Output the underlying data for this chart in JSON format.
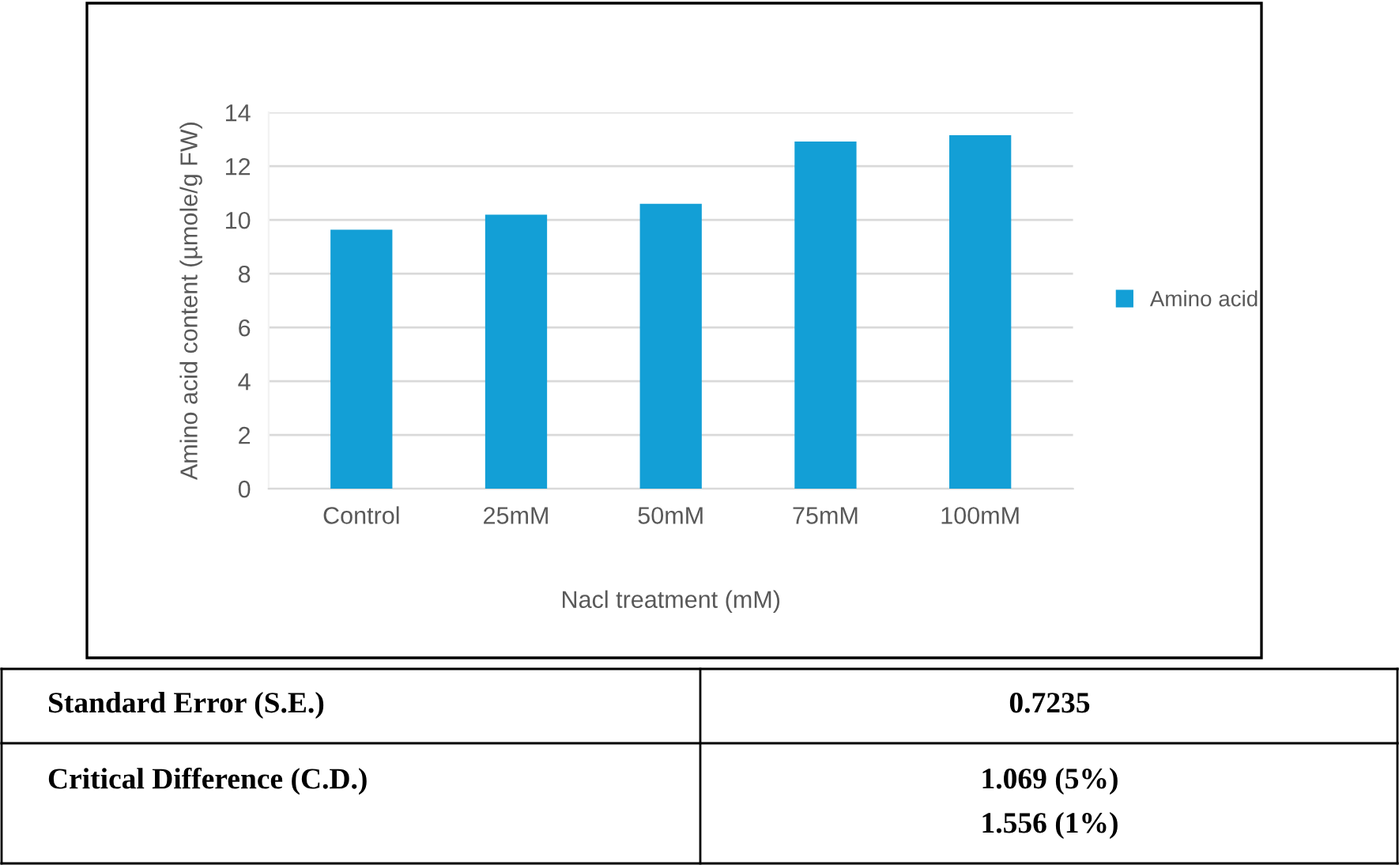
{
  "chart_data": {
    "type": "bar",
    "xlabel": "Nacl treatment (mM)",
    "ylabel": "Amino acid content (µmole/g FW)",
    "categories": [
      "Control",
      "25mM",
      "50mM",
      "75mM",
      "100mM"
    ],
    "series": [
      {
        "name": "Amino acid",
        "color": "#139fd6",
        "values": [
          9.64,
          10.2,
          10.6,
          12.92,
          13.15
        ]
      }
    ],
    "ylim": [
      0,
      14
    ],
    "yticks": [
      0,
      2,
      4,
      6,
      8,
      10,
      12,
      14
    ],
    "grid": "y",
    "legend": "right",
    "annotations": [
      "Standard Error (S.E.)",
      "0.7235",
      "Critical Difference (C.D.)",
      "1.069 (5%)",
      "1.556 (1%)"
    ]
  }
}
